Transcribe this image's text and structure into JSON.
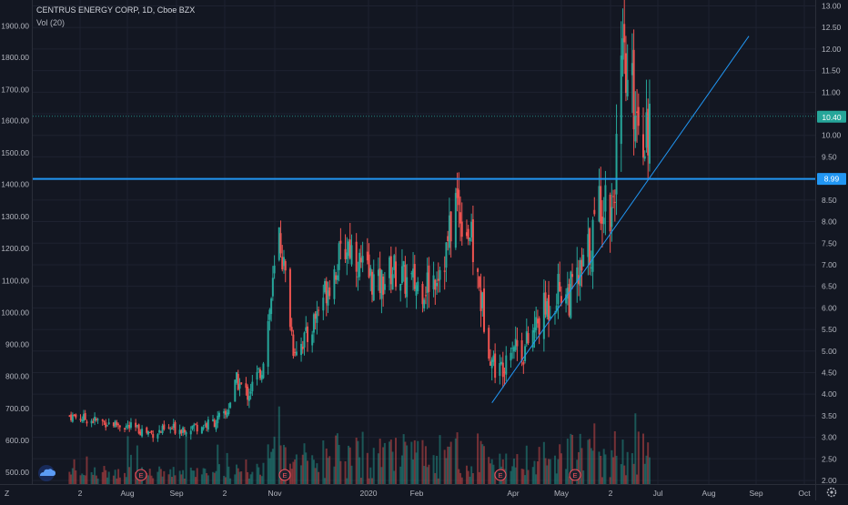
{
  "header": {
    "symbol_line": "CENTRUS ENERGY CORP, 1D, Cboe BZX",
    "volume_label": "Vol (20)"
  },
  "left_axis": {
    "labels": [
      "1900.00",
      "1800.00",
      "1700.00",
      "1600.00",
      "1500.00",
      "1400.00",
      "1300.00",
      "1200.00",
      "1100.00",
      "1000.00",
      "900.00",
      "800.00",
      "700.00",
      "600.00",
      "500.00"
    ]
  },
  "right_axis": {
    "labels": [
      "13.00",
      "12.50",
      "12.00",
      "11.50",
      "11.00",
      "10.50",
      "10.00",
      "9.50",
      "9.00",
      "8.50",
      "8.00",
      "7.50",
      "7.00",
      "6.50",
      "6.00",
      "5.50",
      "5.00",
      "4.50",
      "4.00",
      "3.50",
      "3.00",
      "2.50",
      "2.00"
    ],
    "price_badge": "10.40",
    "line_badge": "8.99"
  },
  "time_axis": {
    "labels": [
      "2",
      "Aug",
      "Sep",
      "2",
      "Nov",
      "2020",
      "Feb",
      "Apr",
      "May",
      "2",
      "Jul",
      "Aug",
      "Sep",
      "Oct"
    ],
    "tz_label": "Z",
    "settings_icon": "gear-icon"
  },
  "markers": {
    "earnings_label": "E"
  },
  "colors": {
    "background": "#131722",
    "up": "#26a69a",
    "down": "#ef5350",
    "horizontal_line": "#2196f3",
    "trend_line": "#2196f3",
    "price_badge": "#26a69a"
  },
  "chart_data": {
    "type": "candlestick",
    "title": "CENTRUS ENERGY CORP, 1D, Cboe BZX",
    "right_axis_range": [
      2.0,
      13.0
    ],
    "left_axis_range": [
      500,
      1900
    ],
    "horizontal_level": 8.99,
    "last_price": 10.4,
    "grid": true,
    "close_path": [
      [
        "2019-06-24",
        3.5
      ],
      [
        "2019-07-08",
        3.4
      ],
      [
        "2019-07-25",
        3.3
      ],
      [
        "2019-08-15",
        3.1
      ],
      [
        "2019-08-30",
        3.2
      ],
      [
        "2019-09-20",
        3.3
      ],
      [
        "2019-10-01",
        3.5
      ],
      [
        "2019-10-08",
        4.3
      ],
      [
        "2019-10-15",
        4.0
      ],
      [
        "2019-10-24",
        4.6
      ],
      [
        "2019-10-31",
        6.5
      ],
      [
        "2019-11-04",
        7.7
      ],
      [
        "2019-11-08",
        6.7
      ],
      [
        "2019-11-13",
        5.1
      ],
      [
        "2019-11-22",
        5.3
      ],
      [
        "2019-12-02",
        6.3
      ],
      [
        "2019-12-12",
        7.1
      ],
      [
        "2019-12-18",
        7.5
      ],
      [
        "2019-12-27",
        6.9
      ],
      [
        "2020-01-06",
        6.5
      ],
      [
        "2020-01-15",
        6.9
      ],
      [
        "2020-01-24",
        6.6
      ],
      [
        "2020-02-03",
        6.5
      ],
      [
        "2020-02-10",
        6.7
      ],
      [
        "2020-02-18",
        7.3
      ],
      [
        "2020-02-24",
        8.5
      ],
      [
        "2020-03-04",
        7.7
      ],
      [
        "2020-03-11",
        6.2
      ],
      [
        "2020-03-18",
        4.8
      ],
      [
        "2020-03-23",
        4.5
      ],
      [
        "2020-03-30",
        5.3
      ],
      [
        "2020-04-07",
        5.0
      ],
      [
        "2020-04-20",
        5.9
      ],
      [
        "2020-04-30",
        6.5
      ],
      [
        "2020-05-06",
        6.3
      ],
      [
        "2020-05-13",
        6.7
      ],
      [
        "2020-05-20",
        7.5
      ],
      [
        "2020-05-26",
        8.6
      ],
      [
        "2020-06-02",
        8.3
      ],
      [
        "2020-06-05",
        9.6
      ],
      [
        "2020-06-09",
        11.5
      ],
      [
        "2020-06-12",
        11.0
      ],
      [
        "2020-06-17",
        10.8
      ],
      [
        "2020-06-22",
        10.2
      ],
      [
        "2020-06-26",
        10.4
      ]
    ],
    "trend_line": [
      [
        "2020-03-18",
        3.8
      ],
      [
        "2020-08-28",
        12.3
      ]
    ],
    "volume_relative": "bars increase from low in mid-2019 to peaks around Nov 2019, Feb-Mar 2020 and Jun 2020"
  }
}
